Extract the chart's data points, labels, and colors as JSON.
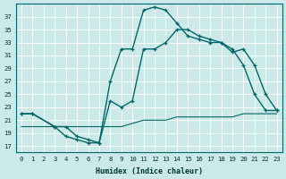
{
  "xlabel": "Humidex (Indice chaleur)",
  "bg_color": "#cce9e9",
  "grid_color": "#ffffff",
  "line_color": "#006666",
  "xlim": [
    -0.5,
    23.5
  ],
  "ylim": [
    16,
    39
  ],
  "yticks": [
    17,
    19,
    21,
    23,
    25,
    27,
    29,
    31,
    33,
    35,
    37
  ],
  "xticks": [
    0,
    1,
    2,
    3,
    4,
    5,
    6,
    7,
    8,
    9,
    10,
    11,
    12,
    13,
    14,
    15,
    16,
    17,
    18,
    19,
    20,
    21,
    22,
    23
  ],
  "line1_x": [
    0,
    1,
    3,
    4,
    5,
    6,
    7,
    8,
    9,
    10,
    11,
    12,
    13,
    14,
    15,
    16,
    17,
    18,
    19,
    20,
    21,
    22,
    23
  ],
  "line1_y": [
    22,
    22,
    20,
    18.5,
    18,
    17.5,
    17.5,
    27,
    32,
    32,
    38,
    38.5,
    38,
    36,
    34,
    33.5,
    33,
    33,
    32,
    29.5,
    25,
    22.5,
    22.5
  ],
  "line2_x": [
    0,
    1,
    3,
    4,
    5,
    6,
    7,
    8,
    9,
    10,
    11,
    12,
    13,
    14,
    15,
    16,
    17,
    18,
    19,
    20,
    21,
    22,
    23
  ],
  "line2_y": [
    22,
    22,
    20,
    20,
    18.5,
    18,
    17.5,
    24,
    23,
    24,
    32,
    32,
    33,
    35,
    35,
    34,
    33.5,
    33,
    31.5,
    32,
    29.5,
    25,
    22.5
  ],
  "line3_x": [
    0,
    1,
    2,
    3,
    4,
    5,
    6,
    7,
    8,
    9,
    10,
    11,
    12,
    13,
    14,
    15,
    16,
    17,
    18,
    19,
    20,
    21,
    22,
    23
  ],
  "line3_y": [
    20,
    20,
    20,
    20,
    20,
    20,
    20,
    20,
    20,
    20,
    20.5,
    21,
    21,
    21,
    21.5,
    21.5,
    21.5,
    21.5,
    21.5,
    21.5,
    22,
    22,
    22,
    22
  ]
}
